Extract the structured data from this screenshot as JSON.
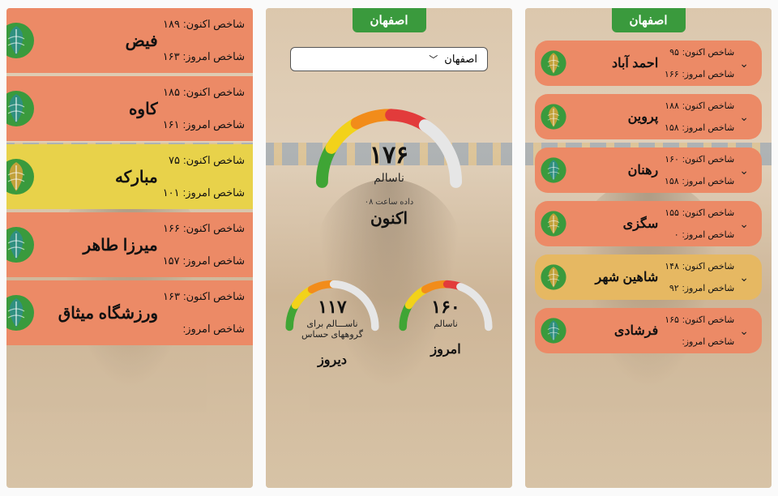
{
  "colors": {
    "header_tag_bg": "#3a9a3d",
    "card_orange": "#ec8a66",
    "card_yellow": "#e8d24a",
    "card_amber": "#e6b862",
    "logo_green": "#3a9a3d",
    "logo_gold": "#c9a23a",
    "logo_teal": "#2e8f84"
  },
  "labels": {
    "now_index": "شاخص اکنون:",
    "today_index": "شاخص امروز:"
  },
  "panel_center": {
    "header": "اصفهان",
    "dropdown_selected": "اصفهان",
    "main_gauge": {
      "value": "۱۷۶",
      "status": "ناسالم",
      "data_time": "داده ساعت ۰۸",
      "caption": "اکنون",
      "pct": 0.63,
      "segments": [
        {
          "color": "#3fa535",
          "w": 0.17
        },
        {
          "color": "#f2d21a",
          "w": 0.17
        },
        {
          "color": "#f28c1a",
          "w": 0.17
        },
        {
          "color": "#e23b3b",
          "w": 0.17
        },
        {
          "color": "#e6e6e6",
          "w": 0.32
        }
      ]
    },
    "mini_gauges": [
      {
        "value": "۱۱۷",
        "status": "ناســـالم برای گروههای حساس",
        "caption": "دیروز",
        "pct": 0.43,
        "segments": [
          {
            "color": "#3fa535",
            "w": 0.17
          },
          {
            "color": "#f2d21a",
            "w": 0.17
          },
          {
            "color": "#f28c1a",
            "w": 0.17
          },
          {
            "color": "#e6e6e6",
            "w": 0.49
          }
        ]
      },
      {
        "value": "۱۶۰",
        "status": "ناسالم",
        "caption": "امروز",
        "pct": 0.57,
        "segments": [
          {
            "color": "#3fa535",
            "w": 0.17
          },
          {
            "color": "#f2d21a",
            "w": 0.17
          },
          {
            "color": "#f28c1a",
            "w": 0.17
          },
          {
            "color": "#e23b3b",
            "w": 0.1
          },
          {
            "color": "#e6e6e6",
            "w": 0.39
          }
        ]
      }
    ]
  },
  "panel_right": {
    "header": "اصفهان",
    "stations": [
      {
        "name": "احمد آباد",
        "now": "۹۵",
        "today": "۱۶۶",
        "bg": "card_orange",
        "logo": "gold"
      },
      {
        "name": "پروین",
        "now": "۱۸۸",
        "today": "۱۵۸",
        "bg": "card_orange",
        "logo": "gold"
      },
      {
        "name": "رهنان",
        "now": "۱۶۰",
        "today": "۱۵۸",
        "bg": "card_orange",
        "logo": "teal"
      },
      {
        "name": "سگزی",
        "now": "۱۵۵",
        "today": "۰",
        "bg": "card_orange",
        "logo": "gold"
      },
      {
        "name": "شاهین شهر",
        "now": "۱۴۸",
        "today": "۹۲",
        "bg": "card_amber",
        "logo": "gold"
      },
      {
        "name": "فرشادی",
        "now": "۱۶۵",
        "today": "",
        "bg": "card_orange",
        "logo": "teal"
      }
    ]
  },
  "panel_left": {
    "stations": [
      {
        "name": "فیض",
        "now": "۱۸۹",
        "today": "۱۶۳",
        "bg": "card_orange",
        "logo": "teal"
      },
      {
        "name": "کاوه",
        "now": "۱۸۵",
        "today": "۱۶۱",
        "bg": "card_orange",
        "logo": "teal"
      },
      {
        "name": "مبارکه",
        "now": "۷۵",
        "today": "۱۰۱",
        "bg": "card_yellow",
        "logo": "gold"
      },
      {
        "name": "میرزا طاهر",
        "now": "۱۶۶",
        "today": "۱۵۷",
        "bg": "card_orange",
        "logo": "teal"
      },
      {
        "name": "ورزشگاه میثاق",
        "now": "۱۶۳",
        "today": "",
        "bg": "card_orange",
        "logo": "teal"
      }
    ]
  }
}
